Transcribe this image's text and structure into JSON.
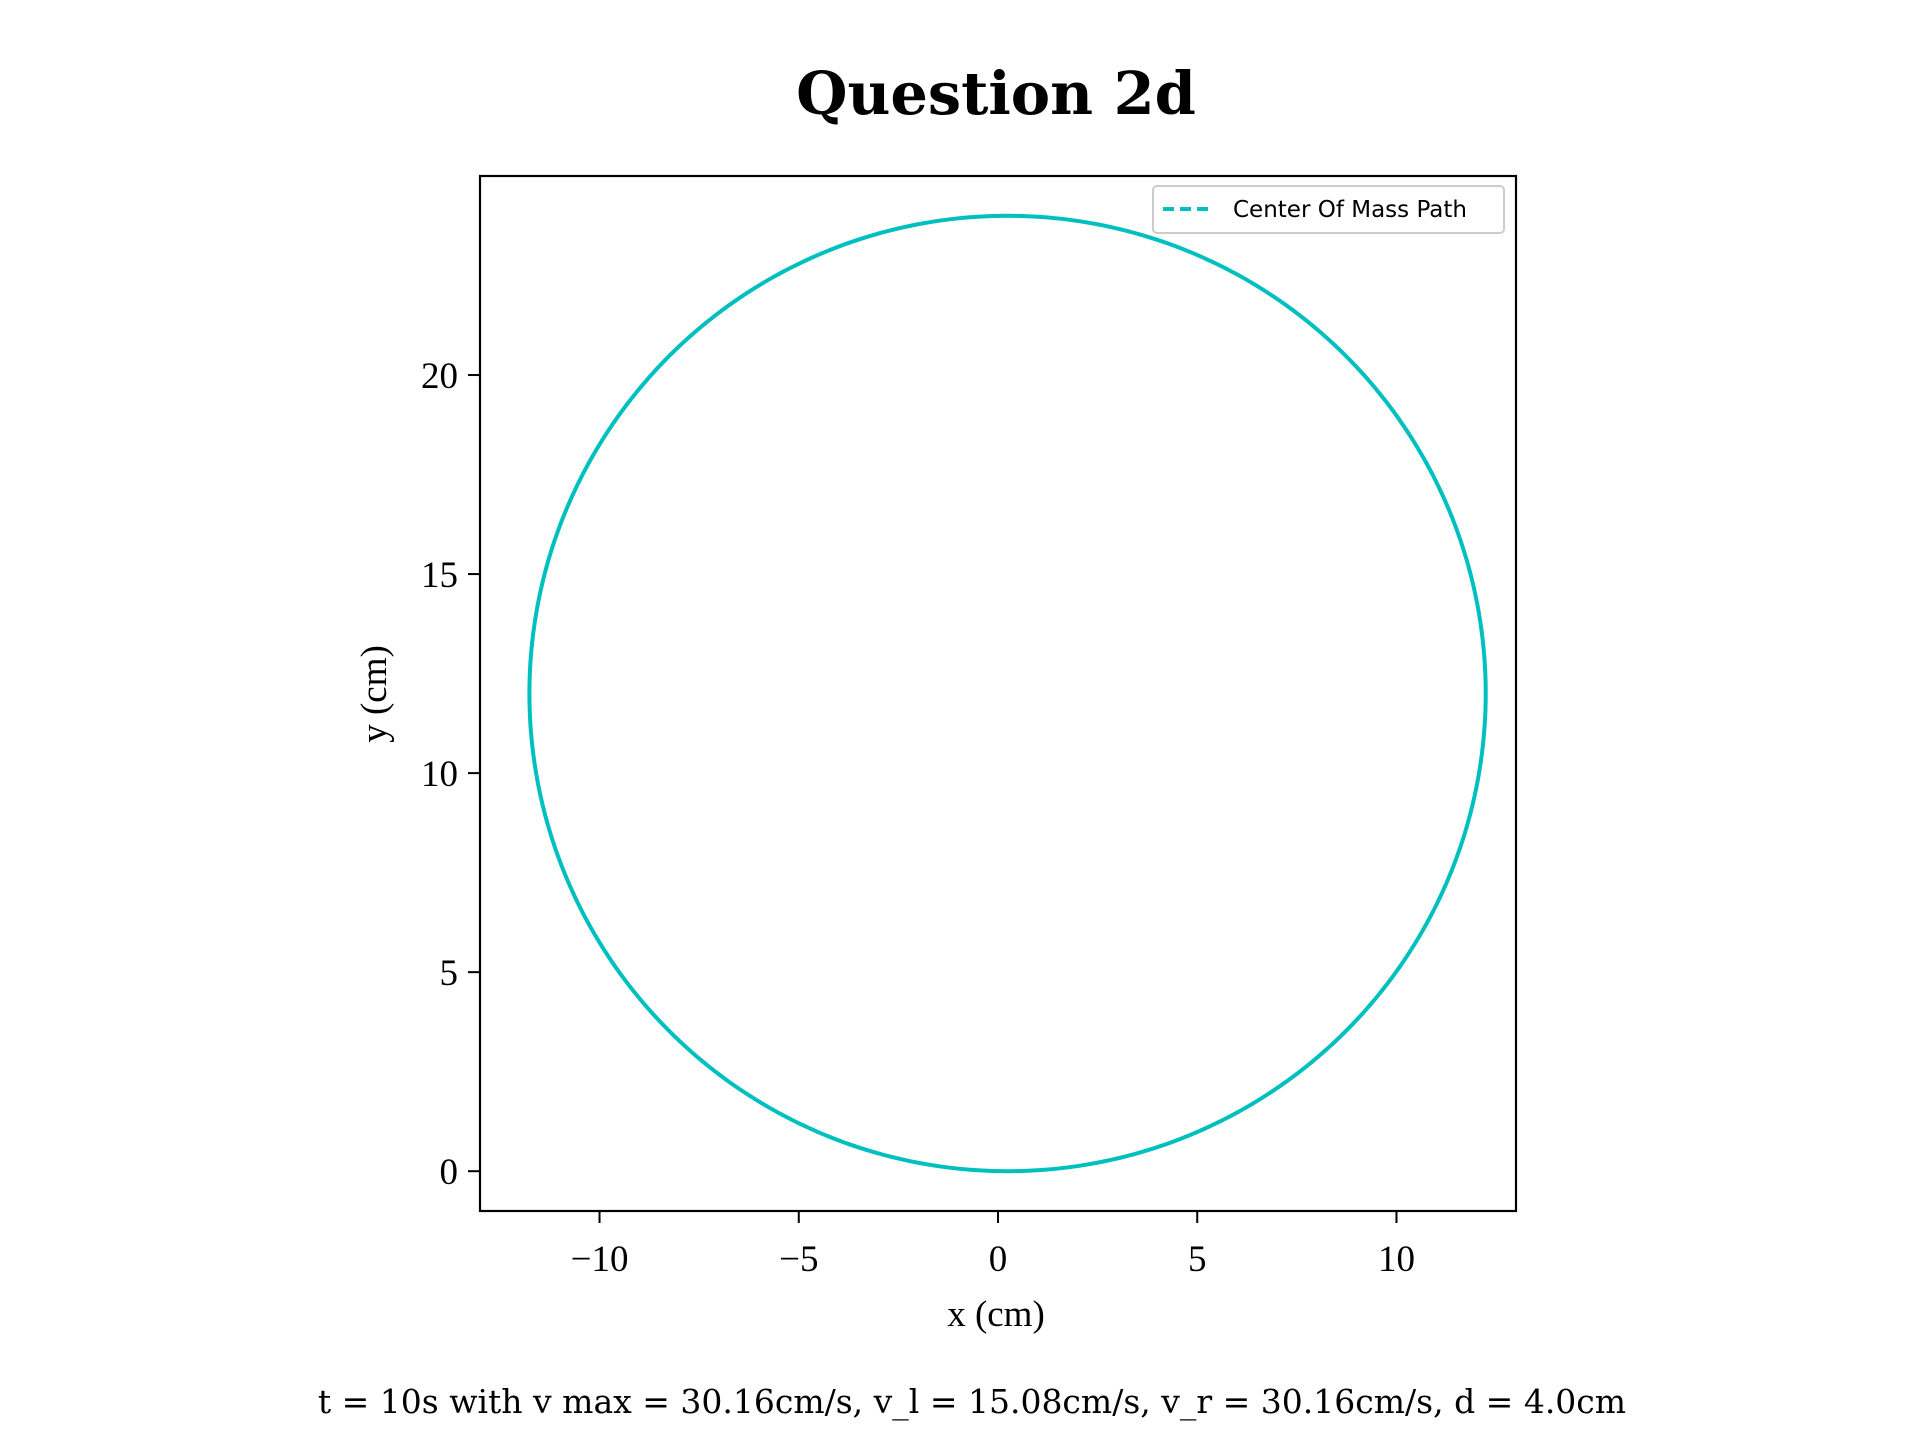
{
  "chart_data": {
    "type": "line",
    "title": "Question 2d",
    "xlabel": "x (cm)",
    "ylabel": "y (cm)",
    "caption": "t = 10s with v max = 30.16cm/s, v_l = 15.08cm/s, v_r = 30.16cm/s, d = 4.0cm",
    "xlim": [
      -13,
      13
    ],
    "ylim": [
      -1,
      25
    ],
    "xticks": [
      -10,
      -5,
      0,
      5,
      10
    ],
    "xtick_labels": [
      "−10",
      "−5",
      "0",
      "5",
      "10"
    ],
    "yticks": [
      0,
      5,
      10,
      15,
      20
    ],
    "ytick_labels": [
      "0",
      "5",
      "10",
      "15",
      "20"
    ],
    "grid": false,
    "legend_position": "top-right",
    "series": [
      {
        "name": "Center Of Mass Path",
        "color": "#00bfbf",
        "line_style": "dashed",
        "shape": "circle",
        "center": [
          0.24,
          12.0
        ],
        "radius": 12.0
      }
    ]
  }
}
